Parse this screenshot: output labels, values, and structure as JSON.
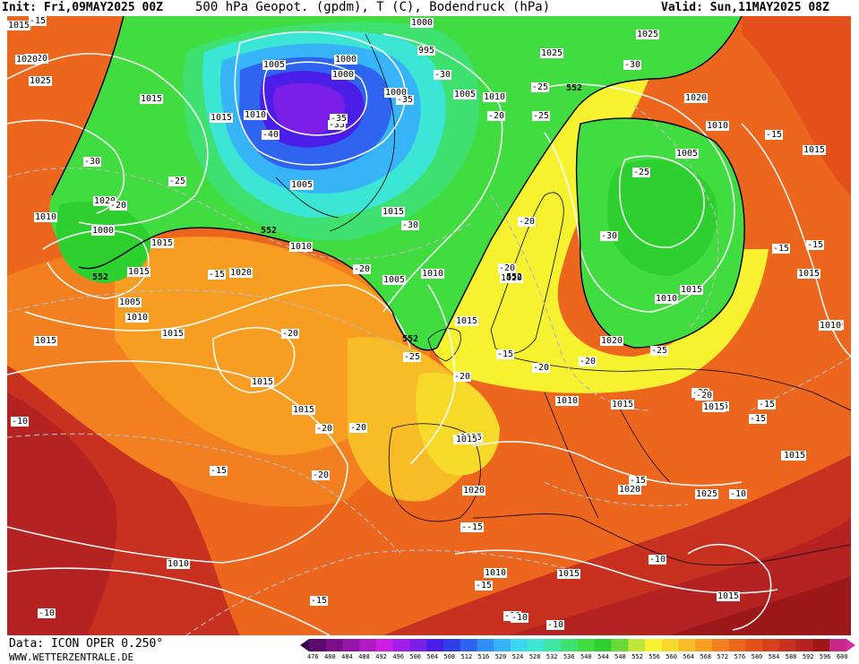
{
  "header": {
    "init": "Init: Fri,09MAY2025 00Z",
    "title": "500 hPa Geopot. (gpdm), T (C), Bodendruck (hPa)",
    "valid": "Valid: Sun,11MAY2025 08Z"
  },
  "footer": {
    "data_source": "Data: ICON OPER 0.250°",
    "website": "WWW.WETTERZENTRALE.DE"
  },
  "colorbar": {
    "ticks": [
      "476",
      "480",
      "484",
      "488",
      "492",
      "496",
      "500",
      "504",
      "508",
      "512",
      "516",
      "520",
      "524",
      "528",
      "532",
      "536",
      "540",
      "544",
      "548",
      "552",
      "556",
      "560",
      "564",
      "568",
      "572",
      "576",
      "580",
      "584",
      "588",
      "592",
      "596",
      "600"
    ],
    "colors": [
      "#5c0a6e",
      "#7a0f8a",
      "#9515a8",
      "#b31ac4",
      "#cc1ee0",
      "#a21ee8",
      "#7a1ee8",
      "#4a1ee8",
      "#2f3fe8",
      "#2f64f0",
      "#2f8ef5",
      "#36b4f7",
      "#3cd6f5",
      "#3ce6d4",
      "#3ce6a0",
      "#3ee070",
      "#40dc40",
      "#2ed030",
      "#6ad83a",
      "#bfe63a",
      "#f7f230",
      "#f7d92a",
      "#f7bc26",
      "#f79e22",
      "#f28020",
      "#ec661e",
      "#e4501c",
      "#d8401c",
      "#c83020",
      "#b42222",
      "#9c1818",
      "#c82888"
    ]
  },
  "pressure_labels": [
    {
      "t": "1015"
    },
    {
      "t": "1020"
    },
    {
      "t": "1025"
    },
    {
      "t": "1015"
    },
    {
      "t": "1015"
    },
    {
      "t": "1010"
    },
    {
      "t": "1005"
    },
    {
      "t": "1000"
    },
    {
      "t": "1000"
    },
    {
      "t": "995"
    },
    {
      "t": "1000"
    },
    {
      "t": "1005"
    },
    {
      "t": "1010"
    },
    {
      "t": "1000"
    },
    {
      "t": "1020"
    },
    {
      "t": "1025"
    },
    {
      "t": "1025"
    },
    {
      "t": "1020"
    },
    {
      "t": "1010"
    },
    {
      "t": "1005"
    },
    {
      "t": "1015"
    },
    {
      "t": "1010"
    },
    {
      "t": "1020"
    },
    {
      "t": "1005"
    },
    {
      "t": "1015"
    },
    {
      "t": "1010"
    },
    {
      "t": "1000"
    },
    {
      "t": "1005"
    },
    {
      "t": "1010"
    },
    {
      "t": "1015"
    },
    {
      "t": "1020"
    },
    {
      "t": "1005"
    },
    {
      "t": "1010"
    },
    {
      "t": "1015"
    },
    {
      "t": "1020"
    },
    {
      "t": "1020"
    },
    {
      "t": "1010"
    },
    {
      "t": "1015"
    },
    {
      "t": "1015"
    },
    {
      "t": "1010"
    },
    {
      "t": "1015"
    },
    {
      "t": "1015"
    },
    {
      "t": "1020"
    },
    {
      "t": "1015"
    },
    {
      "t": "1015"
    },
    {
      "t": "1015"
    },
    {
      "t": "1015"
    },
    {
      "t": "1015"
    },
    {
      "t": "1025"
    },
    {
      "t": "1020"
    },
    {
      "t": "1010"
    },
    {
      "t": "1015"
    },
    {
      "t": "1020"
    },
    {
      "t": "1025"
    },
    {
      "t": "1015"
    },
    {
      "t": "1015"
    },
    {
      "t": "1010"
    },
    {
      "t": "1015"
    },
    {
      "t": "1015"
    },
    {
      "t": "1010"
    },
    {
      "t": "1015"
    },
    {
      "t": "1015"
    }
  ],
  "temperature_labels": [
    {
      "t": "-15"
    },
    {
      "t": "-30"
    },
    {
      "t": "-25"
    },
    {
      "t": "-20"
    },
    {
      "t": "-40"
    },
    {
      "t": "-35"
    },
    {
      "t": "-35"
    },
    {
      "t": "-30"
    },
    {
      "t": "-25"
    },
    {
      "t": "-20"
    },
    {
      "t": "-35"
    },
    {
      "t": "-30"
    },
    {
      "t": "-25"
    },
    {
      "t": "-30"
    },
    {
      "t": "-25"
    },
    {
      "t": "-25"
    },
    {
      "t": "-30"
    },
    {
      "t": "-20"
    },
    {
      "t": "-15"
    },
    {
      "t": "-20"
    },
    {
      "t": "-20"
    },
    {
      "t": "-20"
    },
    {
      "t": "-15"
    },
    {
      "t": "-20"
    },
    {
      "t": "-20"
    },
    {
      "t": "-20"
    },
    {
      "t": "-20"
    },
    {
      "t": "-20"
    },
    {
      "t": "-20"
    },
    {
      "t": "-15"
    },
    {
      "t": "-15"
    },
    {
      "t": "-15"
    },
    {
      "t": "-25"
    },
    {
      "t": "-20"
    },
    {
      "t": "-15"
    },
    {
      "t": "-10"
    },
    {
      "t": "-10"
    },
    {
      "t": "-15"
    },
    {
      "t": "-15"
    },
    {
      "t": "-10"
    },
    {
      "t": "-10"
    },
    {
      "t": "-10"
    },
    {
      "t": "-20"
    },
    {
      "t": "-15"
    },
    {
      "t": "-10"
    },
    {
      "t": "-15"
    },
    {
      "t": "-15"
    },
    {
      "t": "-15"
    },
    {
      "t": "-20"
    },
    {
      "t": "-10"
    }
  ],
  "geopotential_labels": [
    {
      "t": "552"
    },
    {
      "t": "552"
    },
    {
      "t": "552"
    },
    {
      "t": "552"
    },
    {
      "t": "552"
    }
  ]
}
